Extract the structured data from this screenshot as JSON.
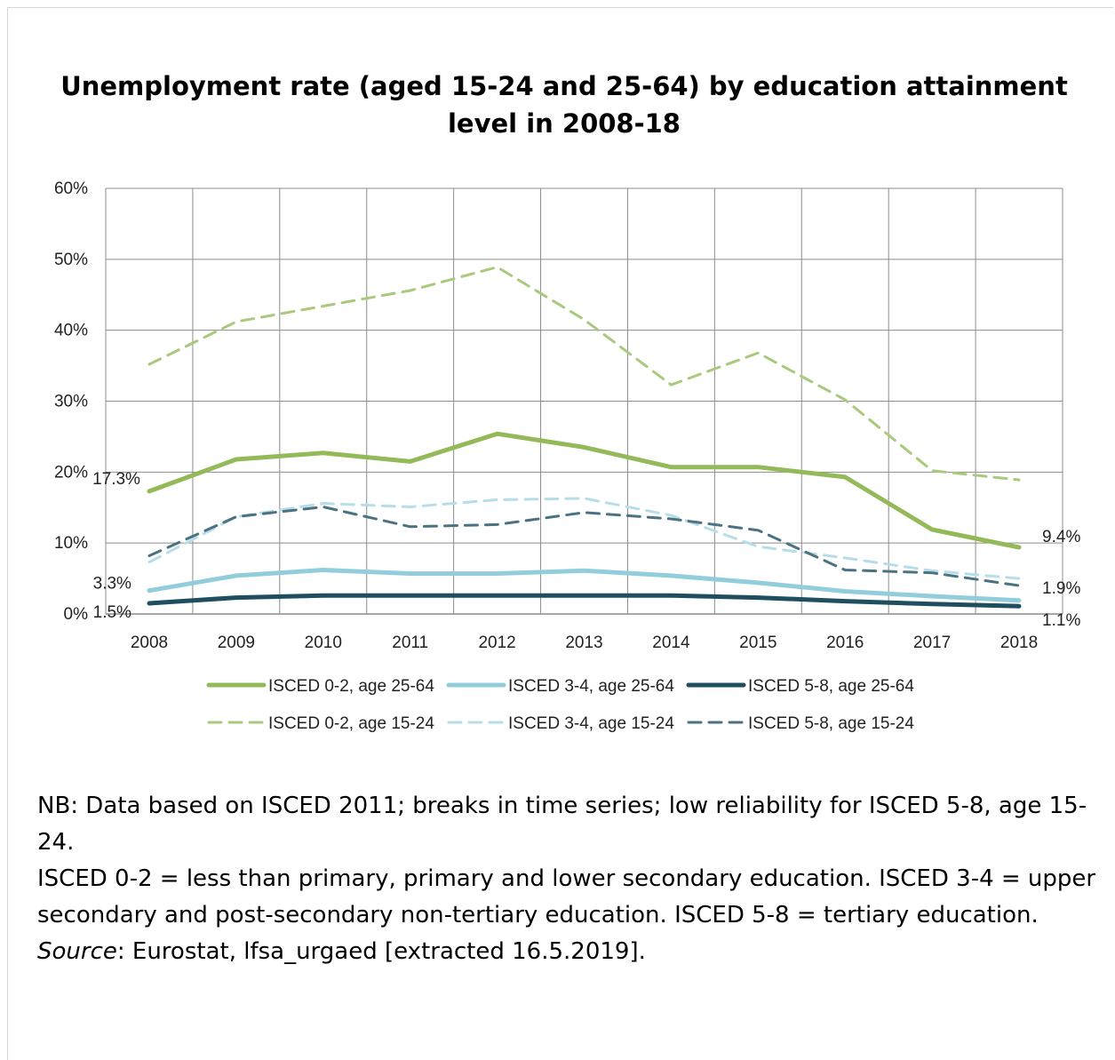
{
  "title": {
    "line1": "Unemployment rate (aged 15-24 and 25-64) by education attainment",
    "line2": "level in 2008-18"
  },
  "chart_data": {
    "type": "line",
    "title": "Unemployment rate (aged 15-24 and 25-64) by education attainment level in 2008-18",
    "xlabel": "",
    "ylabel": "",
    "x": [
      "2008",
      "2009",
      "2010",
      "2011",
      "2012",
      "2013",
      "2014",
      "2015",
      "2016",
      "2017",
      "2018"
    ],
    "yticks": [
      "0%",
      "10%",
      "20%",
      "30%",
      "40%",
      "50%",
      "60%"
    ],
    "ylim": [
      0,
      60
    ],
    "grid": true,
    "legend_position": "bottom",
    "series": [
      {
        "name": "ISCED 0-2, age 25-64",
        "color": "#93b958",
        "style": "solid",
        "values": [
          17.3,
          21.8,
          22.7,
          21.5,
          25.4,
          23.5,
          20.7,
          20.7,
          19.3,
          11.9,
          9.4
        ]
      },
      {
        "name": "ISCED 3-4, age 25-64",
        "color": "#92cddc",
        "style": "solid",
        "values": [
          3.3,
          5.4,
          6.2,
          5.7,
          5.7,
          6.1,
          5.4,
          4.4,
          3.2,
          2.5,
          1.9
        ]
      },
      {
        "name": "ISCED 5-8, age 25-64",
        "color": "#1f4e5f",
        "style": "solid",
        "values": [
          1.5,
          2.3,
          2.6,
          2.6,
          2.6,
          2.6,
          2.6,
          2.3,
          1.8,
          1.4,
          1.1
        ]
      },
      {
        "name": "ISCED 0-2, age 15-24",
        "color": "#a9c97d",
        "style": "dashed",
        "values": [
          35.2,
          41.2,
          43.4,
          45.6,
          48.9,
          41.5,
          32.3,
          36.8,
          30.2,
          20.2,
          18.9
        ]
      },
      {
        "name": "ISCED 3-4, age 15-24",
        "color": "#b7dde8",
        "style": "dashed",
        "values": [
          7.3,
          13.7,
          15.6,
          15.1,
          16.1,
          16.3,
          13.9,
          9.5,
          7.9,
          6.1,
          5.0
        ]
      },
      {
        "name": "ISCED 5-8, age 15-24",
        "color": "#4b7282",
        "style": "dashed",
        "values": [
          8.2,
          13.7,
          15.1,
          12.3,
          12.6,
          14.3,
          13.4,
          11.8,
          6.2,
          5.8,
          4.0
        ]
      }
    ],
    "annotations": [
      {
        "text": "17.3%",
        "series": 0,
        "index": 0
      },
      {
        "text": "9.4%",
        "series": 0,
        "index": 10
      },
      {
        "text": "3.3%",
        "series": 1,
        "index": 0
      },
      {
        "text": "1.9%",
        "series": 1,
        "index": 10
      },
      {
        "text": "1.5%",
        "series": 2,
        "index": 0
      },
      {
        "text": "1.1%",
        "series": 2,
        "index": 10
      }
    ]
  },
  "notes": {
    "nb": "NB: Data based on ISCED 2011; breaks in time series; low reliability for ISCED 5-8, age 15-24.",
    "isced": "ISCED 0-2 = less than primary, primary and lower secondary education. ISCED 3-4 = upper secondary and post-secondary non-tertiary education. ISCED 5-8 = tertiary education.",
    "source_label": "Source",
    "source_text": ": Eurostat, lfsa_urgaed [extracted 16.5.2019]."
  }
}
